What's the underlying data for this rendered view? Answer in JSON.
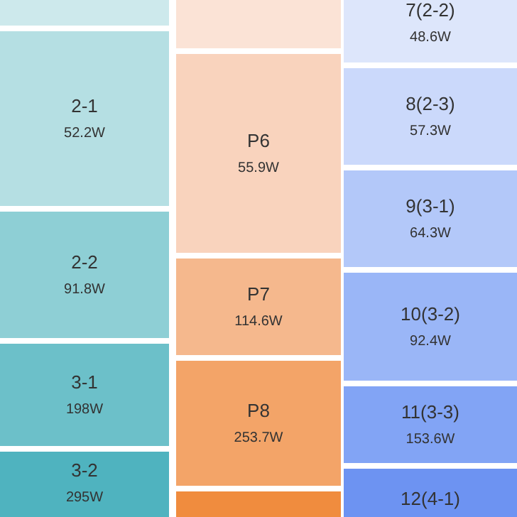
{
  "chart_data": {
    "type": "other",
    "categories": [
      "2-1",
      "2-2",
      "3-1",
      "3-2",
      "P6",
      "P7",
      "P8",
      "7(2-2)",
      "8(2-3)",
      "9(3-1)",
      "10(3-2)",
      "11(3-3)",
      "12(4-1)"
    ],
    "values": [
      52.2,
      91.8,
      198,
      295,
      55.9,
      114.6,
      253.7,
      48.6,
      57.3,
      64.3,
      92.4,
      153.6,
      null
    ],
    "value_labels": [
      "52.2W",
      "91.8W",
      "198W",
      "295W",
      "55.9W",
      "114.6W",
      "253.7W",
      "48.6W",
      "57.3W",
      "64.3W",
      "92.4W",
      "153.6W",
      null
    ],
    "colors": [
      "#b5dfe3",
      "#8ecfd5",
      "#6cc0c9",
      "#4fb3bf",
      "#f9d3bd",
      "#f5b88d",
      "#f3a468",
      "#dde6fb",
      "#cbd9fb",
      "#b3c8f9",
      "#9ab6f7",
      "#82a4f5",
      "#6d93f2"
    ]
  }
}
